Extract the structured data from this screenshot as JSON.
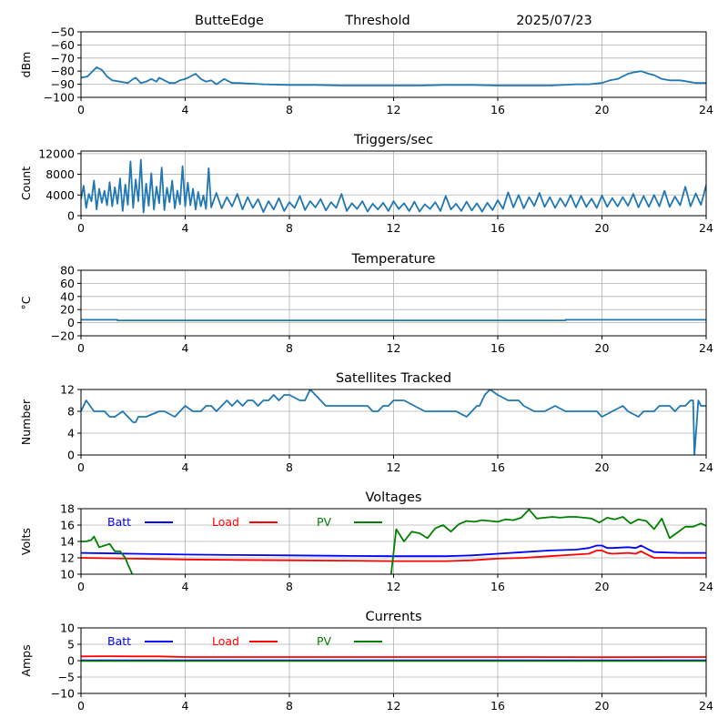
{
  "header": {
    "station": "ButteEdge",
    "mode": "Threshold",
    "date": "2025/07/23"
  },
  "colors": {
    "series_default": "#1f77b4",
    "batt": "#0000ff",
    "load": "#ff0000",
    "pv": "#008000",
    "grid": "#b0b0b0"
  },
  "chart_data": [
    {
      "id": "threshold",
      "type": "line",
      "title": "",
      "xlabel": "",
      "ylabel": "dBm",
      "xlim": [
        0,
        24
      ],
      "ylim": [
        -100,
        -50
      ],
      "xticks": [
        0,
        4,
        8,
        12,
        16,
        20,
        24
      ],
      "yticks": [
        -100,
        -90,
        -80,
        -70,
        -60,
        -50
      ],
      "series": [
        {
          "name": "",
          "color": "#1f77b4",
          "x": [
            0,
            0.25,
            0.5,
            0.6,
            0.8,
            1.0,
            1.2,
            1.5,
            1.8,
            2.0,
            2.1,
            2.3,
            2.5,
            2.7,
            2.9,
            3.0,
            3.2,
            3.4,
            3.6,
            3.8,
            4.0,
            4.2,
            4.4,
            4.6,
            4.8,
            5.0,
            5.2,
            5.5,
            5.8,
            6.0,
            6.5,
            7,
            8,
            9,
            10,
            11,
            12,
            13,
            14,
            15,
            16,
            17,
            18,
            19,
            19.5,
            20,
            20.3,
            20.6,
            20.8,
            21.0,
            21.2,
            21.5,
            21.8,
            22.0,
            22.3,
            22.6,
            23.0,
            23.3,
            23.6,
            24
          ],
          "y": [
            -85,
            -84,
            -79,
            -77,
            -79,
            -84,
            -87,
            -88,
            -89,
            -86,
            -85,
            -89,
            -88,
            -86,
            -88,
            -85,
            -87,
            -89,
            -89,
            -87,
            -86,
            -84,
            -82,
            -86,
            -88,
            -87,
            -90,
            -86,
            -89,
            -89,
            -89.5,
            -90,
            -90.5,
            -90.5,
            -91,
            -91,
            -91,
            -91,
            -90.5,
            -90.5,
            -91,
            -91,
            -91,
            -90,
            -90,
            -89,
            -87,
            -86,
            -84,
            -82,
            -81,
            -80,
            -82,
            -83,
            -86,
            -87,
            -87,
            -88,
            -89,
            -89
          ]
        }
      ]
    },
    {
      "id": "triggers",
      "type": "line",
      "title": "Triggers/sec",
      "xlabel": "",
      "ylabel": "Count",
      "xlim": [
        0,
        24
      ],
      "ylim": [
        0,
        12500
      ],
      "xticks": [
        0,
        4,
        8,
        12,
        16,
        20,
        24
      ],
      "yticks": [
        0,
        4000,
        8000,
        12000
      ],
      "series": [
        {
          "name": "",
          "color": "#1f77b4",
          "x": [
            0,
            0.1,
            0.2,
            0.3,
            0.4,
            0.5,
            0.6,
            0.7,
            0.8,
            0.9,
            1.0,
            1.1,
            1.2,
            1.3,
            1.4,
            1.5,
            1.6,
            1.7,
            1.8,
            1.9,
            2.0,
            2.1,
            2.2,
            2.3,
            2.4,
            2.5,
            2.6,
            2.7,
            2.8,
            2.9,
            3.0,
            3.1,
            3.2,
            3.3,
            3.4,
            3.5,
            3.6,
            3.7,
            3.8,
            3.9,
            4.0,
            4.1,
            4.2,
            4.3,
            4.4,
            4.5,
            4.6,
            4.7,
            4.8,
            4.9,
            5.0,
            5.2,
            5.4,
            5.6,
            5.8,
            6.0,
            6.2,
            6.4,
            6.6,
            6.8,
            7.0,
            7.2,
            7.4,
            7.6,
            7.8,
            8.0,
            8.2,
            8.4,
            8.6,
            8.8,
            9.0,
            9.2,
            9.4,
            9.6,
            9.8,
            10.0,
            10.2,
            10.4,
            10.6,
            10.8,
            11.0,
            11.2,
            11.4,
            11.6,
            11.8,
            12.0,
            12.2,
            12.4,
            12.6,
            12.8,
            13.0,
            13.2,
            13.4,
            13.6,
            13.8,
            14.0,
            14.2,
            14.4,
            14.6,
            14.8,
            15.0,
            15.2,
            15.4,
            15.6,
            15.8,
            16.0,
            16.2,
            16.4,
            16.6,
            16.8,
            17.0,
            17.2,
            17.4,
            17.6,
            17.8,
            18.0,
            18.2,
            18.4,
            18.6,
            18.8,
            19.0,
            19.2,
            19.4,
            19.6,
            19.8,
            20.0,
            20.2,
            20.4,
            20.6,
            20.8,
            21.0,
            21.2,
            21.4,
            21.6,
            21.8,
            22.0,
            22.2,
            22.4,
            22.6,
            22.8,
            23.0,
            23.2,
            23.4,
            23.6,
            23.8,
            24.0
          ],
          "y": [
            3200,
            5800,
            1500,
            4200,
            2800,
            6800,
            1200,
            5200,
            2500,
            4800,
            2000,
            6500,
            1800,
            5500,
            2300,
            7200,
            900,
            6000,
            2100,
            10500,
            1500,
            7000,
            2800,
            10800,
            600,
            6200,
            1900,
            8200,
            1200,
            5600,
            2400,
            9300,
            1100,
            5400,
            2600,
            6800,
            1400,
            4800,
            2200,
            9600,
            1800,
            6400,
            2000,
            5200,
            1200,
            4600,
            1800,
            3900,
            1300,
            9200,
            1600,
            4400,
            1400,
            3600,
            1800,
            4200,
            1200,
            3600,
            1500,
            3200,
            700,
            2800,
            1200,
            3400,
            900,
            2600,
            1500,
            3800,
            1100,
            2800,
            1600,
            3200,
            1000,
            2600,
            1500,
            4200,
            900,
            2400,
            1300,
            2800,
            800,
            2300,
            1200,
            2500,
            900,
            2800,
            1300,
            2400,
            900,
            2700,
            800,
            2200,
            1300,
            2600,
            900,
            3800,
            1200,
            2300,
            900,
            2700,
            1000,
            2400,
            800,
            2500,
            1100,
            3000,
            1300,
            4500,
            1600,
            4000,
            1400,
            3600,
            1900,
            4400,
            1700,
            3600,
            1500,
            3400,
            1800,
            4000,
            1600,
            3800,
            1700,
            3300,
            1500,
            3900,
            1700,
            3400,
            1800,
            3600,
            1900,
            4200,
            1600,
            3800,
            1700,
            4000,
            1800,
            4800,
            1700,
            3700,
            2000,
            5600,
            1800,
            4300,
            2100,
            5900
          ]
        }
      ]
    },
    {
      "id": "temperature",
      "type": "line",
      "title": "Temperature",
      "xlabel": "",
      "ylabel": "°C",
      "xlim": [
        0,
        24
      ],
      "ylim": [
        -20,
        80
      ],
      "xticks": [
        0,
        4,
        8,
        12,
        16,
        20,
        24
      ],
      "yticks": [
        -20,
        0,
        20,
        40,
        60,
        80
      ],
      "series": [
        {
          "name": "",
          "color": "#1f77b4",
          "x": [
            0,
            1.4,
            1.4,
            18.6,
            18.6,
            24
          ],
          "y": [
            4.5,
            4.5,
            3.5,
            3.5,
            4.5,
            4.5
          ]
        }
      ]
    },
    {
      "id": "satellites",
      "type": "line",
      "title": "Satellites Tracked",
      "xlabel": "",
      "ylabel": "Number",
      "xlim": [
        0,
        24
      ],
      "ylim": [
        0,
        12
      ],
      "xticks": [
        0,
        4,
        8,
        12,
        16,
        20,
        24
      ],
      "yticks": [
        0,
        4,
        8,
        12
      ],
      "series": [
        {
          "name": "",
          "color": "#1f77b4",
          "x": [
            0,
            0.1,
            0.2,
            0.35,
            0.5,
            0.9,
            1.1,
            1.3,
            1.6,
            1.8,
            2.0,
            2.1,
            2.2,
            2.3,
            2.5,
            3.0,
            3.2,
            3.6,
            3.8,
            4.0,
            4.3,
            4.6,
            4.8,
            5.0,
            5.2,
            5.4,
            5.6,
            5.8,
            6.0,
            6.2,
            6.4,
            6.6,
            6.8,
            7.0,
            7.2,
            7.4,
            7.6,
            7.8,
            8.0,
            8.4,
            8.6,
            8.7,
            8.8,
            9.0,
            9.2,
            9.4,
            9.6,
            10.0,
            10.5,
            11.0,
            11.2,
            11.4,
            11.6,
            11.8,
            12.0,
            12.4,
            12.8,
            13.2,
            13.6,
            14.0,
            14.4,
            14.8,
            15.0,
            15.2,
            15.3,
            15.5,
            15.7,
            16.0,
            16.4,
            16.8,
            17.0,
            17.4,
            17.8,
            18.2,
            18.6,
            19.0,
            19.4,
            19.8,
            20.0,
            20.4,
            20.8,
            21.0,
            21.4,
            21.6,
            21.8,
            22.0,
            22.2,
            22.6,
            22.8,
            23.0,
            23.2,
            23.4,
            23.5,
            23.55,
            23.7,
            23.8,
            24.0
          ],
          "y": [
            8,
            9,
            10,
            9,
            8,
            8,
            7,
            7,
            8,
            7,
            6,
            6,
            7,
            7,
            7,
            8,
            8,
            7,
            8,
            9,
            8,
            8,
            9,
            9,
            8,
            9,
            10,
            9,
            10,
            9,
            10,
            10,
            9,
            10,
            10,
            11,
            10,
            11,
            11,
            10,
            10,
            11,
            12,
            11,
            10,
            9,
            9,
            9,
            9,
            9,
            8,
            8,
            9,
            9,
            10,
            10,
            9,
            8,
            8,
            8,
            8,
            7,
            8,
            9,
            9,
            11,
            12,
            11,
            10,
            10,
            9,
            8,
            8,
            9,
            8,
            8,
            8,
            8,
            7,
            8,
            9,
            8,
            7,
            8,
            8,
            8,
            9,
            9,
            8,
            9,
            9,
            10,
            10,
            0,
            10,
            9,
            9
          ]
        }
      ]
    },
    {
      "id": "voltages",
      "type": "line",
      "title": "Voltages",
      "xlabel": "",
      "ylabel": "Volts",
      "xlim": [
        0,
        24
      ],
      "ylim": [
        10,
        18
      ],
      "xticks": [
        0,
        4,
        8,
        12,
        16,
        20,
        24
      ],
      "yticks": [
        10,
        12,
        14,
        16,
        18
      ],
      "series": [
        {
          "name": "Batt",
          "color": "#0000ff",
          "x": [
            0,
            2,
            4,
            6,
            8,
            10,
            12,
            13,
            14,
            15,
            16,
            17,
            18,
            19,
            19.5,
            19.8,
            20.0,
            20.2,
            20.4,
            21.0,
            21.3,
            21.5,
            21.8,
            22.0,
            23,
            24
          ],
          "y": [
            12.6,
            12.5,
            12.4,
            12.35,
            12.3,
            12.25,
            12.2,
            12.2,
            12.2,
            12.3,
            12.5,
            12.7,
            12.9,
            13.0,
            13.2,
            13.5,
            13.5,
            13.2,
            13.2,
            13.3,
            13.2,
            13.5,
            13.0,
            12.7,
            12.6,
            12.6
          ]
        },
        {
          "name": "Load",
          "color": "#ff0000",
          "x": [
            0,
            2,
            4,
            6,
            8,
            10,
            12,
            13,
            14,
            15,
            16,
            17,
            18,
            19,
            19.5,
            19.8,
            20.0,
            20.2,
            20.4,
            21.0,
            21.3,
            21.5,
            21.8,
            22.0,
            23,
            24
          ],
          "y": [
            12.0,
            11.9,
            11.8,
            11.75,
            11.7,
            11.65,
            11.6,
            11.6,
            11.6,
            11.7,
            11.9,
            12.0,
            12.2,
            12.4,
            12.5,
            12.9,
            12.9,
            12.6,
            12.5,
            12.6,
            12.5,
            12.8,
            12.3,
            12.0,
            12.0,
            12.0
          ]
        },
        {
          "name": "PV",
          "color": "#008000",
          "x": [
            0,
            0.2,
            0.4,
            0.5,
            0.7,
            0.9,
            1.1,
            1.3,
            1.5,
            1.7,
            1.8,
            2.0,
            11.9,
            12.1,
            12.4,
            12.7,
            13.0,
            13.3,
            13.6,
            13.9,
            14.2,
            14.5,
            14.8,
            15.1,
            15.4,
            15.7,
            16.0,
            16.3,
            16.6,
            16.9,
            17.2,
            17.5,
            17.8,
            18.1,
            18.4,
            18.7,
            19.0,
            19.3,
            19.6,
            19.9,
            20.2,
            20.5,
            20.8,
            21.1,
            21.4,
            21.7,
            22.0,
            22.3,
            22.6,
            22.9,
            23.2,
            23.5,
            23.8,
            24
          ],
          "y": [
            14.0,
            14.0,
            14.2,
            14.6,
            13.3,
            13.5,
            13.7,
            12.8,
            12.8,
            12.0,
            11.2,
            9.8,
            9.8,
            15.5,
            14.0,
            15.2,
            15.0,
            14.4,
            15.6,
            16.0,
            15.2,
            16.1,
            16.5,
            16.4,
            16.6,
            16.5,
            16.4,
            16.7,
            16.6,
            16.9,
            17.9,
            16.8,
            16.9,
            17.0,
            16.9,
            17.0,
            17.0,
            16.9,
            16.8,
            16.3,
            16.9,
            16.7,
            17.0,
            16.2,
            16.7,
            16.5,
            15.5,
            16.8,
            14.4,
            15.1,
            15.8,
            15.8,
            16.2,
            15.9
          ]
        }
      ],
      "legend": {
        "placement": "top-left",
        "orientation": "horizontal"
      }
    },
    {
      "id": "currents",
      "type": "line",
      "title": "Currents",
      "xlabel": "",
      "ylabel": "Amps",
      "xlim": [
        0,
        24
      ],
      "ylim": [
        -10,
        10
      ],
      "xticks": [
        0,
        4,
        8,
        12,
        16,
        20,
        24
      ],
      "yticks": [
        -10,
        -5,
        0,
        5,
        10
      ],
      "series": [
        {
          "name": "Batt",
          "color": "#0000ff",
          "x": [
            0,
            24
          ],
          "y": [
            0.1,
            0.1
          ]
        },
        {
          "name": "Load",
          "color": "#ff0000",
          "x": [
            0,
            1,
            2,
            3,
            3.5,
            4,
            8,
            12,
            16,
            20,
            24
          ],
          "y": [
            1.3,
            1.35,
            1.3,
            1.3,
            1.2,
            1.1,
            1.1,
            1.1,
            1.1,
            1.05,
            1.1
          ]
        },
        {
          "name": "PV",
          "color": "#008000",
          "x": [
            0,
            24
          ],
          "y": [
            -0.1,
            -0.1
          ]
        }
      ],
      "legend": {
        "placement": "top-left",
        "orientation": "horizontal"
      }
    }
  ]
}
